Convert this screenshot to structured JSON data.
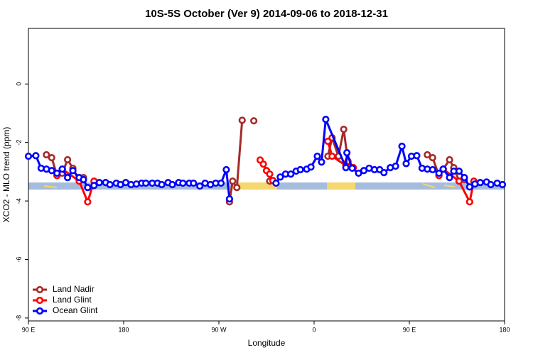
{
  "chart_data": {
    "type": "line",
    "title": "10S-5S October (Ver 9)   2014-09-06 to 2018-12-31",
    "x_label": "Longitude",
    "y_label": "XCO2 - MLO trend (ppm)",
    "xlim": [
      90,
      540
    ],
    "ylim": [
      -8.1,
      1.9
    ],
    "xticks": [
      {
        "value": 90,
        "label": "90 E"
      },
      180,
      {
        "value": 270,
        "label": "90 W"
      },
      {
        "value": 360,
        "label": "0"
      },
      {
        "value": 450,
        "label": "90 E"
      },
      {
        "value": 540,
        "label": "180"
      }
    ],
    "yticks": [
      0,
      -2,
      -4,
      -6,
      -8
    ],
    "legend": "bottomleft",
    "series": [
      {
        "name": "Land Nadir",
        "color": "#a52a2a",
        "x": [
          107,
          112,
          117,
          122,
          127,
          132,
          138,
          142,
          200,
          280,
          283,
          287,
          292,
          298,
          303,
          310,
          318,
          350,
          373,
          377,
          383,
          388,
          392,
          397,
          420,
          467,
          472,
          478,
          482,
          488,
          492,
          497,
          502
        ],
        "values": [
          -2.42,
          -2.52,
          -3.13,
          -3.05,
          -2.59,
          -2.88,
          -3.32,
          -3.2,
          null,
          -4.03,
          -3.32,
          -3.54,
          -1.24,
          null,
          -1.26,
          null,
          -3.32,
          null,
          -2.47,
          -1.84,
          -2.47,
          -1.55,
          -2.67,
          -2.86,
          null,
          -2.42,
          -2.52,
          -3.13,
          -2.91,
          -2.59,
          -2.86,
          -3.32,
          -3.27
        ]
      },
      {
        "name": "Land Glint",
        "color": "#ff0000",
        "x": [
          117,
          122,
          138,
          146,
          152,
          250,
          309,
          312,
          315,
          318,
          321,
          350,
          373,
          377,
          390,
          392,
          397,
          440,
          478,
          482,
          497,
          507,
          511
        ],
        "values": [
          -3.13,
          -2.91,
          -3.32,
          -4.03,
          -3.32,
          null,
          -2.6,
          -2.74,
          -2.96,
          -3.08,
          -3.3,
          null,
          -1.96,
          -2.47,
          -2.79,
          -2.64,
          -2.86,
          null,
          -3.13,
          -2.91,
          -3.32,
          -4.03,
          -3.32
        ]
      },
      {
        "name": "Ocean Glint",
        "color": "#0000ff",
        "x": [
          90,
          97,
          102,
          107,
          112,
          117,
          122,
          127,
          132,
          138,
          142,
          146,
          152,
          157,
          163,
          167,
          173,
          177,
          182,
          187,
          192,
          197,
          201,
          207,
          212,
          216,
          222,
          226,
          232,
          236,
          242,
          246,
          252,
          257,
          262,
          267,
          272,
          277,
          280,
          300,
          324,
          328,
          333,
          338,
          343,
          347,
          353,
          357,
          363,
          367,
          371,
          390,
          391,
          396,
          402,
          407,
          412,
          417,
          422,
          426,
          432,
          437,
          443,
          447,
          452,
          457,
          462,
          467,
          472,
          478,
          482,
          488,
          492,
          497,
          502,
          507,
          512,
          517,
          523,
          527,
          533,
          538
        ],
        "values": [
          -2.47,
          -2.45,
          -2.88,
          -2.91,
          -2.96,
          -3.05,
          -2.91,
          -3.2,
          -2.96,
          -3.2,
          -3.27,
          -3.54,
          -3.47,
          -3.37,
          -3.37,
          -3.44,
          -3.39,
          -3.44,
          -3.37,
          -3.44,
          -3.42,
          -3.39,
          -3.39,
          -3.39,
          -3.39,
          -3.44,
          -3.37,
          -3.44,
          -3.37,
          -3.39,
          -3.39,
          -3.39,
          -3.49,
          -3.39,
          -3.44,
          -3.39,
          -3.39,
          -2.93,
          -3.93,
          null,
          -3.39,
          -3.18,
          -3.08,
          -3.08,
          -2.98,
          -2.93,
          -2.91,
          -2.84,
          -2.47,
          -2.67,
          -1.21,
          -2.86,
          -2.35,
          -2.88,
          -3.05,
          -2.96,
          -2.88,
          -2.93,
          -2.93,
          -3.03,
          -2.86,
          -2.81,
          -2.13,
          -2.72,
          -2.47,
          -2.45,
          -2.88,
          -2.91,
          -2.93,
          -3.05,
          -2.91,
          -3.2,
          -2.98,
          -2.98,
          -3.2,
          -3.52,
          -3.42,
          -3.37,
          -3.35,
          -3.44,
          -3.39,
          -3.44
        ]
      }
    ]
  }
}
